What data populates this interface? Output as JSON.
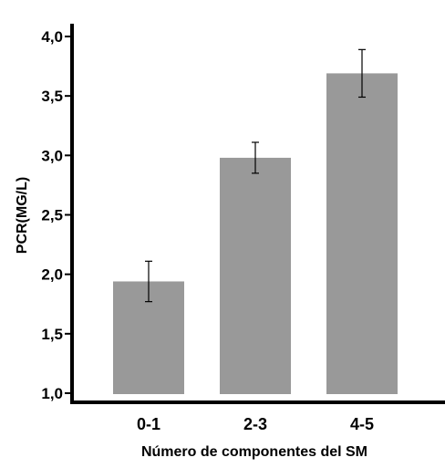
{
  "chart_data": {
    "type": "bar",
    "title": "",
    "xlabel": "Número de componentes del SM",
    "ylabel": "PCR(MG/L)",
    "categories": [
      "0-1",
      "2-3",
      "4-5"
    ],
    "values": [
      1.94,
      2.98,
      3.69
    ],
    "error_low": [
      1.77,
      2.85,
      3.49
    ],
    "error_high": [
      2.11,
      3.11,
      3.89
    ],
    "ylim": [
      1.0,
      4.0
    ],
    "yticks": [
      1.0,
      1.5,
      2.0,
      2.5,
      3.0,
      3.5,
      4.0
    ],
    "ytick_labels": [
      "1,0",
      "1,5",
      "2,0",
      "2,5",
      "3,0",
      "3,5",
      "4,0"
    ],
    "grid": false,
    "bar_color": "#999999",
    "axis_color": "#000000"
  }
}
